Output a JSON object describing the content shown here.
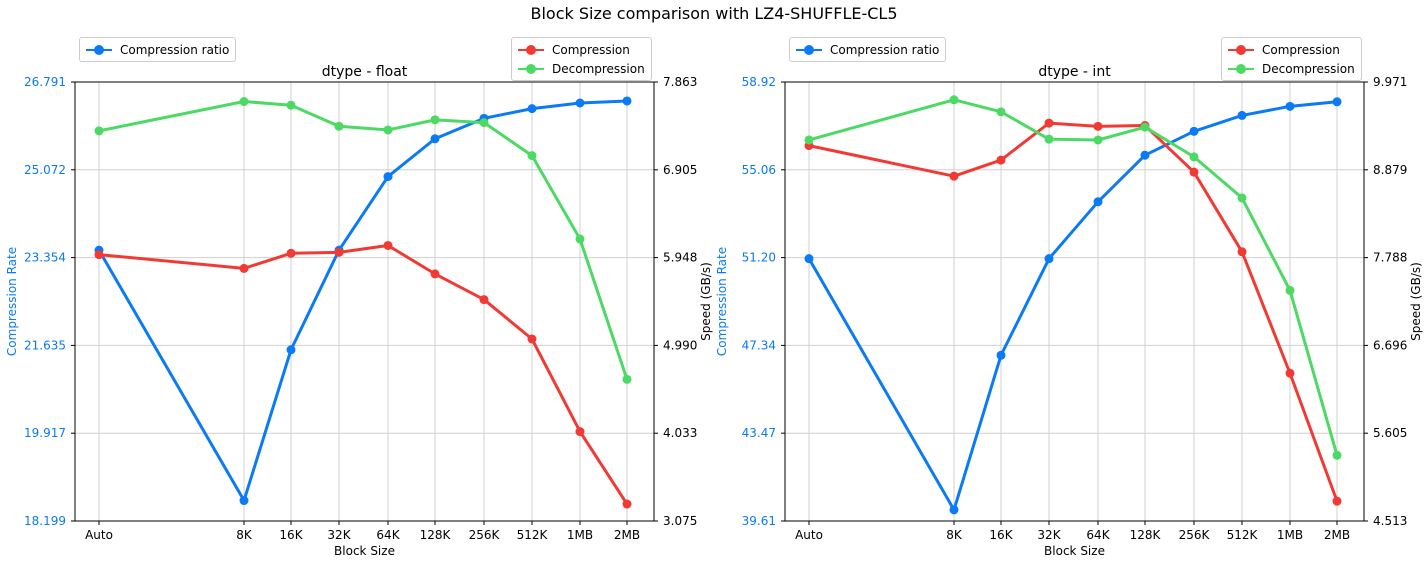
{
  "title": "Block Size comparison with LZ4-SHUFFLE-CL5",
  "colors": {
    "ratio": "#0a7af5",
    "compression": "#f23a35",
    "decompression": "#4cd964"
  },
  "legend": {
    "ratio": "Compression ratio",
    "compression": "Compression",
    "decompression": "Decompression"
  },
  "chart_data": [
    {
      "type": "line",
      "title": "dtype - float",
      "xlabel": "Block Size",
      "ylabel_left": "Compression Rate",
      "ylabel_right": "Speed (GB/s)",
      "categories": [
        "Auto",
        "8K",
        "16K",
        "32K",
        "64K",
        "128K",
        "256K",
        "512K",
        "1MB",
        "2MB"
      ],
      "ylim_left": [
        18.199,
        26.791
      ],
      "yticks_left": [
        "18.199",
        "19.917",
        "21.635",
        "23.354",
        "25.072",
        "26.791"
      ],
      "ylim_right": [
        3.075,
        7.863
      ],
      "yticks_right": [
        "3.075",
        "4.033",
        "4.990",
        "5.948",
        "6.905",
        "7.863"
      ],
      "grid": true,
      "series": [
        {
          "name": "Compression ratio",
          "axis": "left",
          "values": [
            23.5,
            18.6,
            21.55,
            23.5,
            24.94,
            25.68,
            26.08,
            26.27,
            26.38,
            26.42
          ]
        },
        {
          "name": "Compression",
          "axis": "right",
          "values": [
            5.98,
            5.83,
            5.995,
            6.005,
            6.08,
            5.77,
            5.49,
            5.06,
            4.05,
            3.26
          ]
        },
        {
          "name": "Decompression",
          "axis": "right",
          "values": [
            7.33,
            7.65,
            7.61,
            7.38,
            7.34,
            7.45,
            7.42,
            7.06,
            6.15,
            4.62
          ]
        }
      ]
    },
    {
      "type": "line",
      "title": "dtype - int",
      "xlabel": "Block Size",
      "ylabel_left": "Compression Rate",
      "ylabel_right": "Speed (GB/s)",
      "categories": [
        "Auto",
        "8K",
        "16K",
        "32K",
        "64K",
        "128K",
        "256K",
        "512K",
        "1MB",
        "2MB"
      ],
      "ylim_left": [
        39.61,
        58.92
      ],
      "yticks_left": [
        "39.61",
        "43.47",
        "47.34",
        "51.20",
        "55.06",
        "58.92"
      ],
      "ylim_right": [
        4.513,
        9.971
      ],
      "yticks_right": [
        "4.513",
        "5.605",
        "6.696",
        "7.788",
        "8.879",
        "9.971"
      ],
      "grid": true,
      "series": [
        {
          "name": "Compression ratio",
          "axis": "left",
          "values": [
            51.15,
            40.1,
            46.9,
            51.15,
            53.65,
            55.7,
            56.75,
            57.45,
            57.85,
            58.05
          ]
        },
        {
          "name": "Compression",
          "axis": "right",
          "values": [
            9.18,
            8.8,
            9.0,
            9.46,
            9.42,
            9.43,
            8.85,
            7.86,
            6.35,
            4.76
          ]
        },
        {
          "name": "Decompression",
          "axis": "right",
          "values": [
            9.25,
            9.75,
            9.6,
            9.26,
            9.25,
            9.41,
            9.04,
            8.53,
            7.38,
            5.33
          ]
        }
      ]
    }
  ]
}
